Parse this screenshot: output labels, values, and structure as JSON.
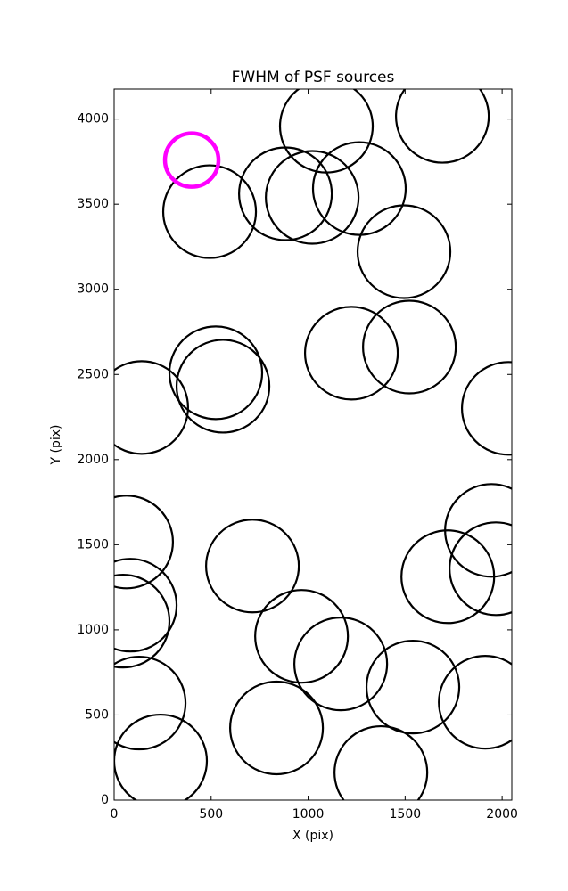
{
  "chart_data": {
    "type": "scatter",
    "title": "FWHM of PSF sources",
    "x_label": "X (pix)",
    "y_label": "Y (pix)",
    "xlim": [
      0,
      2050
    ],
    "ylim": [
      0,
      4176
    ],
    "xticks": [
      0,
      500,
      1000,
      1500,
      2000
    ],
    "yticks": [
      0,
      500,
      1000,
      1500,
      2000,
      2500,
      3000,
      3500,
      4000
    ],
    "series": [
      {
        "color": "#000000",
        "x": [
          1094,
          1692,
          492,
          883,
          1021,
          1264,
          1494,
          524,
          561,
          1223,
          1522,
          142,
          2032,
          64,
          1945,
          1968,
          1720,
          713,
          83,
          46,
          966,
          1168,
          1540,
          837,
          1375,
          1913,
          129,
          239
        ],
        "values": [
          3958,
          4016,
          3456,
          3561,
          3540,
          3592,
          3221,
          2510,
          2431,
          2625,
          2661,
          2306,
          2301,
          1516,
          1584,
          1359,
          1312,
          1375,
          1145,
          1051,
          962,
          800,
          664,
          424,
          162,
          575,
          570,
          230
        ]
      },
      {
        "color": "#ff00ff",
        "x": [
          400
        ],
        "values": [
          3759
        ]
      }
    ]
  }
}
